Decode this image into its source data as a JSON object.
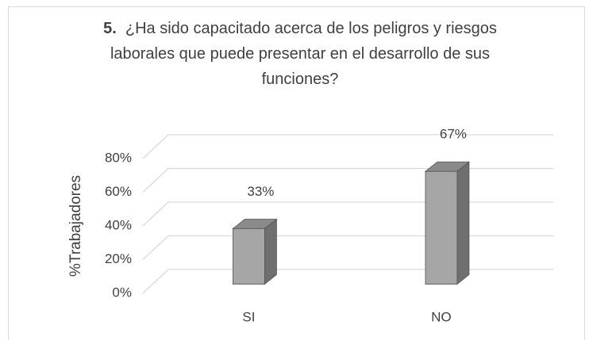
{
  "chart_data": {
    "type": "bar3d",
    "title_number": "5.",
    "title": "¿Ha sido capacitado acerca de los peligros y riesgos laborales que puede presentar en el desarrollo de sus funciones?",
    "y_label": "%Trabajadores",
    "categories": [
      "SI",
      "NO"
    ],
    "values": [
      33,
      67
    ],
    "value_labels": [
      "33%",
      "67%"
    ],
    "color": "#a6a6a6",
    "ylim": [
      0,
      80
    ],
    "yticks": [
      {
        "value": 0,
        "label": "0%"
      },
      {
        "value": 20,
        "label": "20%"
      },
      {
        "value": 40,
        "label": "40%"
      },
      {
        "value": 60,
        "label": "60%"
      },
      {
        "value": 80,
        "label": "80%"
      }
    ],
    "grid": true
  }
}
